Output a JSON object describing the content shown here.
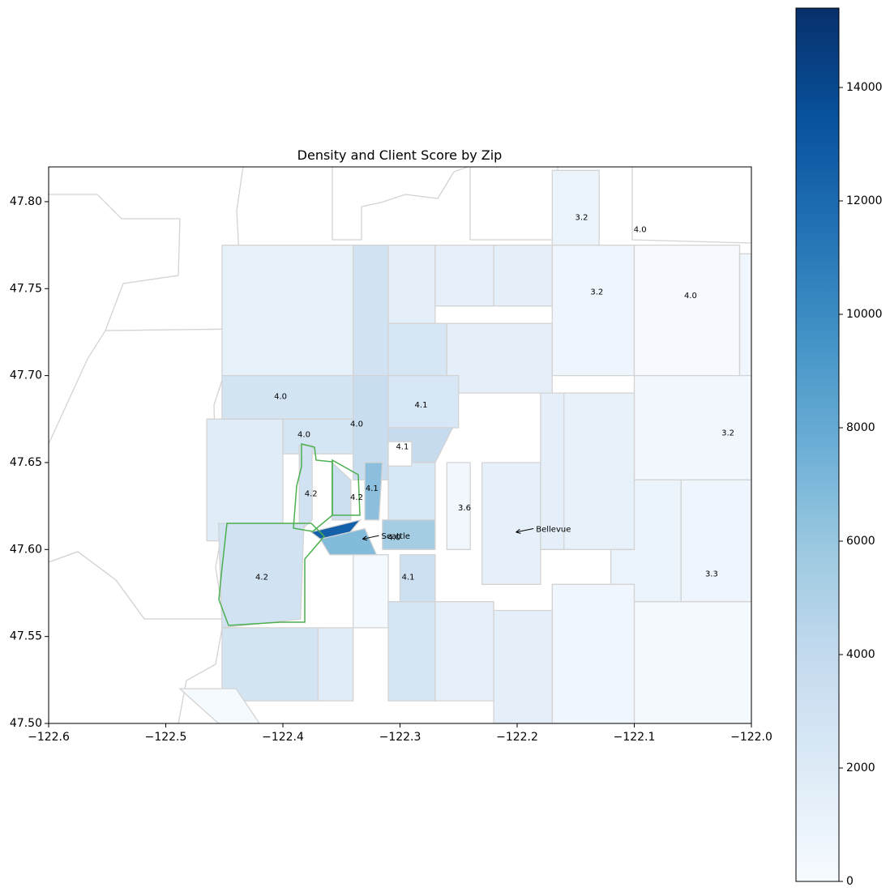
{
  "chart_data": {
    "type": "choropleth-map",
    "title": "Density and Client Score by Zip",
    "xlim": [
      -122.6,
      -122.0
    ],
    "ylim": [
      47.5,
      47.82
    ],
    "x_ticks": [
      -122.6,
      -122.5,
      -122.4,
      -122.3,
      -122.2,
      -122.1,
      -122.0
    ],
    "x_tick_labels": [
      "−122.6",
      "−122.5",
      "−122.4",
      "−122.3",
      "−122.2",
      "−122.1",
      "−122.0"
    ],
    "y_ticks": [
      47.5,
      47.55,
      47.6,
      47.65,
      47.7,
      47.75,
      47.8
    ],
    "y_tick_labels": [
      "47.50",
      "47.55",
      "47.60",
      "47.65",
      "47.70",
      "47.75",
      "47.80"
    ],
    "colormap": "Blues",
    "colorbar": {
      "range": [
        0,
        15400
      ],
      "ticks": [
        0,
        2000,
        4000,
        6000,
        8000,
        10000,
        12000,
        14000
      ],
      "tick_labels": [
        "0",
        "2000",
        "4000",
        "6000",
        "8000",
        "10000",
        "12000",
        "14000"
      ]
    },
    "score_labels": [
      {
        "lon": -122.145,
        "lat": 47.791,
        "text": "3.2"
      },
      {
        "lon": -122.095,
        "lat": 47.784,
        "text": "4.0"
      },
      {
        "lon": -122.132,
        "lat": 47.748,
        "text": "3.2"
      },
      {
        "lon": -122.052,
        "lat": 47.746,
        "text": "4.0"
      },
      {
        "lon": -122.402,
        "lat": 47.688,
        "text": "4.0"
      },
      {
        "lon": -122.282,
        "lat": 47.683,
        "text": "4.1"
      },
      {
        "lon": -122.337,
        "lat": 47.672,
        "text": "4.0"
      },
      {
        "lon": -122.382,
        "lat": 47.666,
        "text": "4.0"
      },
      {
        "lon": -122.298,
        "lat": 47.659,
        "text": "4.1"
      },
      {
        "lon": -122.02,
        "lat": 47.667,
        "text": "3.2"
      },
      {
        "lon": -122.324,
        "lat": 47.635,
        "text": "4.1"
      },
      {
        "lon": -122.376,
        "lat": 47.632,
        "text": "4.2"
      },
      {
        "lon": -122.337,
        "lat": 47.63,
        "text": "4.2"
      },
      {
        "lon": -122.245,
        "lat": 47.624,
        "text": "3.6"
      },
      {
        "lon": -122.305,
        "lat": 47.607,
        "text": "4.0"
      },
      {
        "lon": -122.418,
        "lat": 47.584,
        "text": "4.2"
      },
      {
        "lon": -122.293,
        "lat": 47.584,
        "text": "4.1"
      },
      {
        "lon": -122.034,
        "lat": 47.586,
        "text": "3.3"
      }
    ],
    "annotations": [
      {
        "text": "Seattle",
        "arrow_from": [
          -122.318,
          47.608
        ],
        "arrow_to": [
          -122.332,
          47.606
        ]
      },
      {
        "text": "Bellevue",
        "arrow_from": [
          -122.186,
          47.612
        ],
        "arrow_to": [
          -122.201,
          47.61
        ]
      }
    ],
    "regions": [
      {
        "name": "n-a",
        "pts": [
          [
            -122.452,
            47.775
          ],
          [
            -122.34,
            47.775
          ],
          [
            -122.34,
            47.7
          ],
          [
            -122.452,
            47.7
          ]
        ],
        "density": 1200
      },
      {
        "name": "n-b",
        "pts": [
          [
            -122.34,
            47.775
          ],
          [
            -122.31,
            47.775
          ],
          [
            -122.31,
            47.7
          ],
          [
            -122.34,
            47.7
          ]
        ],
        "density": 3000
      },
      {
        "name": "n-c",
        "pts": [
          [
            -122.31,
            47.775
          ],
          [
            -122.27,
            47.775
          ],
          [
            -122.27,
            47.73
          ],
          [
            -122.31,
            47.73
          ]
        ],
        "density": 1500
      },
      {
        "name": "n-d",
        "pts": [
          [
            -122.31,
            47.73
          ],
          [
            -122.26,
            47.73
          ],
          [
            -122.26,
            47.7
          ],
          [
            -122.31,
            47.7
          ]
        ],
        "density": 2500
      },
      {
        "name": "n-e",
        "pts": [
          [
            -122.27,
            47.775
          ],
          [
            -122.22,
            47.775
          ],
          [
            -122.22,
            47.74
          ],
          [
            -122.27,
            47.74
          ]
        ],
        "density": 1300
      },
      {
        "name": "n-f",
        "pts": [
          [
            -122.22,
            47.775
          ],
          [
            -122.17,
            47.775
          ],
          [
            -122.17,
            47.74
          ],
          [
            -122.22,
            47.74
          ]
        ],
        "density": 1400
      },
      {
        "name": "n-g",
        "pts": [
          [
            -122.26,
            47.73
          ],
          [
            -122.17,
            47.73
          ],
          [
            -122.17,
            47.69
          ],
          [
            -122.25,
            47.69
          ],
          [
            -122.26,
            47.7
          ]
        ],
        "density": 1500
      },
      {
        "name": "ne-a",
        "pts": [
          [
            -122.17,
            47.775
          ],
          [
            -122.1,
            47.775
          ],
          [
            -122.1,
            47.7
          ],
          [
            -122.17,
            47.7
          ]
        ],
        "density": 700
      },
      {
        "name": "ne-b",
        "pts": [
          [
            -122.1,
            47.775
          ],
          [
            -122.01,
            47.775
          ],
          [
            -122.01,
            47.7
          ],
          [
            -122.1,
            47.7
          ]
        ],
        "density": 80
      },
      {
        "name": "top-strip",
        "pts": [
          [
            -122.17,
            47.818
          ],
          [
            -122.13,
            47.818
          ],
          [
            -122.13,
            47.775
          ],
          [
            -122.17,
            47.775
          ]
        ],
        "density": 900
      },
      {
        "name": "ne-c",
        "pts": [
          [
            -122.01,
            47.77
          ],
          [
            -122.0,
            47.77
          ],
          [
            -122.0,
            47.7
          ],
          [
            -122.01,
            47.7
          ]
        ],
        "density": 600
      },
      {
        "name": "e-a",
        "pts": [
          [
            -122.1,
            47.7
          ],
          [
            -122.0,
            47.7
          ],
          [
            -122.0,
            47.64
          ],
          [
            -122.1,
            47.64
          ]
        ],
        "density": 500
      },
      {
        "name": "w-1",
        "pts": [
          [
            -122.452,
            47.7
          ],
          [
            -122.34,
            47.7
          ],
          [
            -122.34,
            47.675
          ],
          [
            -122.452,
            47.675
          ]
        ],
        "density": 2800
      },
      {
        "name": "w-2",
        "pts": [
          [
            -122.465,
            47.675
          ],
          [
            -122.4,
            47.675
          ],
          [
            -122.4,
            47.605
          ],
          [
            -122.465,
            47.605
          ]
        ],
        "density": 1800
      },
      {
        "name": "w-3",
        "pts": [
          [
            -122.4,
            47.675
          ],
          [
            -122.34,
            47.675
          ],
          [
            -122.34,
            47.655
          ],
          [
            -122.4,
            47.655
          ]
        ],
        "density": 2700
      },
      {
        "name": "w-4",
        "pts": [
          [
            -122.34,
            47.7
          ],
          [
            -122.31,
            47.7
          ],
          [
            -122.31,
            47.64
          ],
          [
            -122.34,
            47.64
          ]
        ],
        "density": 3600
      },
      {
        "name": "w-5",
        "pts": [
          [
            -122.31,
            47.7
          ],
          [
            -122.25,
            47.7
          ],
          [
            -122.25,
            47.67
          ],
          [
            -122.31,
            47.67
          ]
        ],
        "density": 2400
      },
      {
        "name": "w-6",
        "pts": [
          [
            -122.31,
            47.67
          ],
          [
            -122.255,
            47.67
          ],
          [
            -122.27,
            47.65
          ],
          [
            -122.31,
            47.65
          ]
        ],
        "density": 3800
      },
      {
        "name": "c-1",
        "pts": [
          [
            -122.31,
            47.65
          ],
          [
            -122.27,
            47.65
          ],
          [
            -122.27,
            47.617
          ],
          [
            -122.31,
            47.617
          ]
        ],
        "density": 2300
      },
      {
        "name": "c-2",
        "pts": [
          [
            -122.315,
            47.617
          ],
          [
            -122.27,
            47.617
          ],
          [
            -122.27,
            47.6
          ],
          [
            -122.315,
            47.6
          ]
        ],
        "density": 5500
      },
      {
        "name": "c-3",
        "pts": [
          [
            -122.33,
            47.65
          ],
          [
            -122.315,
            47.65
          ],
          [
            -122.318,
            47.617
          ],
          [
            -122.33,
            47.617
          ]
        ],
        "density": 6500
      },
      {
        "name": "gw-1",
        "pts": [
          [
            -122.386,
            47.66
          ],
          [
            -122.375,
            47.66
          ],
          [
            -122.375,
            47.617
          ],
          [
            -122.386,
            47.61
          ]
        ],
        "density": 3000
      },
      {
        "name": "gw-2",
        "pts": [
          [
            -122.358,
            47.65
          ],
          [
            -122.342,
            47.64
          ],
          [
            -122.342,
            47.617
          ],
          [
            -122.358,
            47.617
          ]
        ],
        "density": 3400
      },
      {
        "name": "downtown-1",
        "pts": [
          [
            -122.376,
            47.61
          ],
          [
            -122.334,
            47.617
          ],
          [
            -122.35,
            47.604
          ],
          [
            -122.368,
            47.606
          ]
        ],
        "density": 12500
      },
      {
        "name": "downtown-2",
        "pts": [
          [
            -122.368,
            47.606
          ],
          [
            -122.33,
            47.612
          ],
          [
            -122.32,
            47.597
          ],
          [
            -122.36,
            47.597
          ]
        ],
        "density": 6800
      },
      {
        "name": "sw-a",
        "pts": [
          [
            -122.455,
            47.615
          ],
          [
            -122.382,
            47.615
          ],
          [
            -122.385,
            47.56
          ],
          [
            -122.452,
            47.555
          ]
        ],
        "density": 3000
      },
      {
        "name": "s-1",
        "pts": [
          [
            -122.3,
            47.597
          ],
          [
            -122.27,
            47.597
          ],
          [
            -122.27,
            47.57
          ],
          [
            -122.3,
            47.57
          ]
        ],
        "density": 3300
      },
      {
        "name": "s-2",
        "pts": [
          [
            -122.34,
            47.597
          ],
          [
            -122.31,
            47.597
          ],
          [
            -122.31,
            47.555
          ],
          [
            -122.34,
            47.555
          ]
        ],
        "density": 300
      },
      {
        "name": "s-3",
        "pts": [
          [
            -122.452,
            47.555
          ],
          [
            -122.37,
            47.555
          ],
          [
            -122.37,
            47.513
          ],
          [
            -122.452,
            47.513
          ]
        ],
        "density": 2800
      },
      {
        "name": "s-4",
        "pts": [
          [
            -122.37,
            47.555
          ],
          [
            -122.34,
            47.555
          ],
          [
            -122.34,
            47.513
          ],
          [
            -122.37,
            47.513
          ]
        ],
        "density": 1800
      },
      {
        "name": "s-5",
        "pts": [
          [
            -122.31,
            47.57
          ],
          [
            -122.27,
            47.57
          ],
          [
            -122.27,
            47.513
          ],
          [
            -122.31,
            47.513
          ]
        ],
        "density": 2700
      },
      {
        "name": "s-6",
        "pts": [
          [
            -122.27,
            47.57
          ],
          [
            -122.22,
            47.57
          ],
          [
            -122.22,
            47.513
          ],
          [
            -122.27,
            47.513
          ]
        ],
        "density": 1300
      },
      {
        "name": "s-7",
        "pts": [
          [
            -122.22,
            47.565
          ],
          [
            -122.17,
            47.565
          ],
          [
            -122.17,
            47.5
          ],
          [
            -122.22,
            47.5
          ]
        ],
        "density": 1500
      },
      {
        "name": "sw-corner",
        "pts": [
          [
            -122.488,
            47.52
          ],
          [
            -122.455,
            47.5
          ],
          [
            -122.42,
            47.5
          ],
          [
            -122.44,
            47.52
          ]
        ],
        "density": 150
      },
      {
        "name": "bay-1",
        "pts": [
          [
            -122.26,
            47.65
          ],
          [
            -122.24,
            47.65
          ],
          [
            -122.24,
            47.6
          ],
          [
            -122.26,
            47.6
          ]
        ],
        "density": 500
      },
      {
        "name": "east-1",
        "pts": [
          [
            -122.23,
            47.65
          ],
          [
            -122.18,
            47.65
          ],
          [
            -122.18,
            47.58
          ],
          [
            -122.23,
            47.58
          ]
        ],
        "density": 1300
      },
      {
        "name": "east-2",
        "pts": [
          [
            -122.18,
            47.69
          ],
          [
            -122.12,
            47.69
          ],
          [
            -122.12,
            47.6
          ],
          [
            -122.18,
            47.6
          ]
        ],
        "density": 1500
      },
      {
        "name": "east-3",
        "pts": [
          [
            -122.12,
            47.64
          ],
          [
            -122.06,
            47.64
          ],
          [
            -122.06,
            47.57
          ],
          [
            -122.12,
            47.57
          ]
        ],
        "density": 900
      },
      {
        "name": "east-4",
        "pts": [
          [
            -122.06,
            47.64
          ],
          [
            -122.0,
            47.64
          ],
          [
            -122.0,
            47.56
          ],
          [
            -122.06,
            47.56
          ]
        ],
        "density": 700
      },
      {
        "name": "east-5",
        "pts": [
          [
            -122.1,
            47.57
          ],
          [
            -122.0,
            47.57
          ],
          [
            -122.0,
            47.5
          ],
          [
            -122.1,
            47.5
          ]
        ],
        "density": 250
      },
      {
        "name": "east-6",
        "pts": [
          [
            -122.17,
            47.58
          ],
          [
            -122.1,
            47.58
          ],
          [
            -122.1,
            47.5
          ],
          [
            -122.17,
            47.5
          ]
        ],
        "density": 600
      },
      {
        "name": "e-mid",
        "pts": [
          [
            -122.16,
            47.69
          ],
          [
            -122.1,
            47.69
          ],
          [
            -122.1,
            47.6
          ],
          [
            -122.16,
            47.6
          ]
        ],
        "density": 1200
      },
      {
        "name": "white-pocket",
        "pts": [
          [
            -122.31,
            47.662
          ],
          [
            -122.29,
            47.662
          ],
          [
            -122.29,
            47.648
          ],
          [
            -122.31,
            47.648
          ]
        ],
        "density": 0
      }
    ]
  }
}
